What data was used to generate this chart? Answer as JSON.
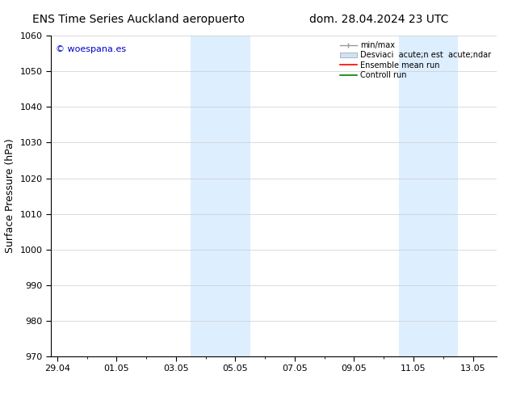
{
  "title_left": "ENS Time Series Auckland aeropuerto",
  "title_right": "dom. 28.04.2024 23 UTC",
  "ylabel": "Surface Pressure (hPa)",
  "ylim": [
    970,
    1060
  ],
  "yticks": [
    970,
    980,
    990,
    1000,
    1010,
    1020,
    1030,
    1040,
    1050,
    1060
  ],
  "xtick_labels": [
    "29.04",
    "01.05",
    "03.05",
    "05.05",
    "07.05",
    "09.05",
    "11.05",
    "13.05"
  ],
  "xtick_positions": [
    0,
    2,
    4,
    6,
    8,
    10,
    12,
    14
  ],
  "xlim": [
    -0.2,
    14.8
  ],
  "background_color": "#ffffff",
  "plot_bg_color": "#ffffff",
  "shaded_bands": [
    {
      "x_start": 4.5,
      "x_end": 6.5,
      "color": "#ddeeff"
    },
    {
      "x_start": 11.5,
      "x_end": 13.5,
      "color": "#ddeeff"
    }
  ],
  "watermark_text": "© woespana.es",
  "watermark_color": "#0000cc",
  "legend_line_minmax_label": "min/max",
  "legend_std_label": "Desviaci  acute;n est  acute;ndar",
  "legend_ens_label": "Ensemble mean run",
  "legend_ctrl_label": "Controll run",
  "legend_minmax_color": "#999999",
  "legend_std_facecolor": "#cce4f7",
  "legend_std_edgecolor": "#aaaaaa",
  "legend_ens_color": "#ff0000",
  "legend_ctrl_color": "#008000",
  "tick_fontsize": 8,
  "label_fontsize": 9,
  "title_fontsize": 10,
  "legend_fontsize": 7,
  "grid_color": "#cccccc",
  "spine_color": "#000000",
  "minor_tick_positions": [
    1,
    3,
    5,
    7,
    9,
    11,
    13
  ]
}
